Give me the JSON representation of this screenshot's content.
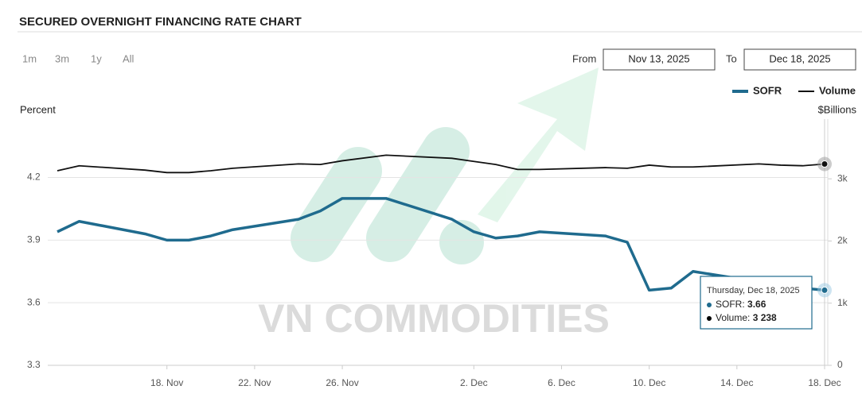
{
  "header": {
    "title": "SECURED OVERNIGHT FINANCING RATE CHART"
  },
  "controls": {
    "ranges": [
      "1m",
      "3m",
      "1y",
      "All"
    ],
    "from_label": "From",
    "from_value": "Nov 13, 2025",
    "to_label": "To",
    "to_value": "Dec 18, 2025"
  },
  "watermark": "VN COMMODITIES",
  "chart_data": {
    "type": "line",
    "ylabel": "Percent",
    "y2label": "$Billions",
    "x": [
      "2025-11-13",
      "2025-11-14",
      "2025-11-17",
      "2025-11-18",
      "2025-11-19",
      "2025-11-20",
      "2025-11-21",
      "2025-11-24",
      "2025-11-25",
      "2025-11-26",
      "2025-11-28",
      "2025-12-01",
      "2025-12-02",
      "2025-12-03",
      "2025-12-04",
      "2025-12-05",
      "2025-12-08",
      "2025-12-09",
      "2025-12-10",
      "2025-12-11",
      "2025-12-12",
      "2025-12-15",
      "2025-12-16",
      "2025-12-17",
      "2025-12-18"
    ],
    "xlim": [
      "2025-11-13",
      "2025-12-18"
    ],
    "xticks": [
      {
        "value": "2025-11-18",
        "label": "18. Nov"
      },
      {
        "value": "2025-11-22",
        "label": "22. Nov"
      },
      {
        "value": "2025-11-26",
        "label": "26. Nov"
      },
      {
        "value": "2025-12-02",
        "label": "2. Dec"
      },
      {
        "value": "2025-12-06",
        "label": "6. Dec"
      },
      {
        "value": "2025-12-10",
        "label": "10. Dec"
      },
      {
        "value": "2025-12-14",
        "label": "14. Dec"
      },
      {
        "value": "2025-12-18",
        "label": "18. Dec"
      }
    ],
    "ylim": [
      3.3,
      4.48
    ],
    "yticks": [
      3.3,
      3.6,
      3.9,
      4.2
    ],
    "y2lim": [
      0,
      3960
    ],
    "y2ticks": [
      0,
      {
        "value": 1000,
        "label": "1k"
      },
      {
        "value": 2000,
        "label": "2k"
      },
      {
        "value": 3000,
        "label": "3k"
      }
    ],
    "grid": true,
    "series": [
      {
        "name": "SOFR",
        "color": "#1f6b8e",
        "values": [
          3.94,
          3.99,
          3.93,
          3.9,
          3.9,
          3.92,
          3.95,
          4.0,
          4.04,
          4.1,
          4.1,
          4.0,
          3.94,
          3.91,
          3.92,
          3.94,
          3.92,
          3.89,
          3.66,
          3.67,
          3.75,
          3.7,
          3.68,
          3.67,
          3.66
        ]
      },
      {
        "name": "Volume",
        "color": "#111111",
        "axis": "y2",
        "values": [
          3130,
          3210,
          3140,
          3100,
          3100,
          3130,
          3170,
          3240,
          3230,
          3290,
          3380,
          3330,
          3280,
          3230,
          3150,
          3150,
          3180,
          3170,
          3220,
          3190,
          3190,
          3240,
          3220,
          3210,
          3238
        ],
        "value_labels": [
          null,
          null,
          null,
          null,
          null,
          null,
          null,
          null,
          null,
          null,
          null,
          null,
          null,
          null,
          null,
          null,
          null,
          null,
          null,
          null,
          null,
          null,
          null,
          null,
          "3 238"
        ]
      }
    ],
    "tooltip": {
      "title": "Thursday, Dec 18, 2025"
    }
  }
}
